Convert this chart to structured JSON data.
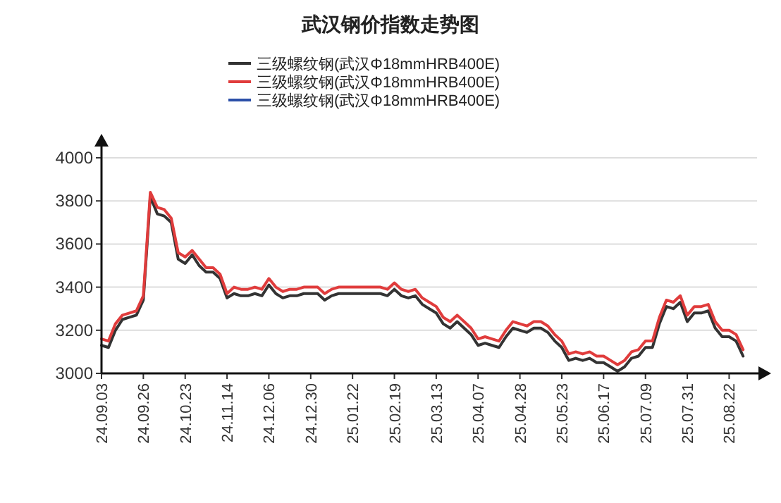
{
  "chart_data": {
    "type": "line",
    "title": "武汉钢价指数走势图",
    "categories": [
      "24.09.03",
      null,
      null,
      null,
      null,
      null,
      "24.09.26",
      null,
      null,
      null,
      null,
      null,
      "24.10.23",
      null,
      null,
      null,
      null,
      null,
      "24.11.14",
      null,
      null,
      null,
      null,
      null,
      "24.12.06",
      null,
      null,
      null,
      null,
      null,
      "24.12.30",
      null,
      null,
      null,
      null,
      null,
      "25.01.22",
      null,
      null,
      null,
      null,
      null,
      "25.02.19",
      null,
      null,
      null,
      null,
      null,
      "25.03.13",
      null,
      null,
      null,
      null,
      null,
      "25.04.07",
      null,
      null,
      null,
      null,
      null,
      "25.04.28",
      null,
      null,
      null,
      null,
      null,
      "25.05.23",
      null,
      null,
      null,
      null,
      null,
      "25.06.17",
      null,
      null,
      null,
      null,
      null,
      "25.07.09",
      null,
      null,
      null,
      null,
      null,
      "25.07.31",
      null,
      null,
      null,
      null,
      null,
      "25.08.22",
      null,
      null
    ],
    "series": [
      {
        "name": "三级螺纹钢(武汉Φ18mmHRB400E)",
        "color": "#333333",
        "values": [
          3130,
          3120,
          3200,
          3250,
          3260,
          3270,
          3340,
          3820,
          3740,
          3730,
          3700,
          3530,
          3510,
          3550,
          3500,
          3470,
          3470,
          3440,
          3350,
          3370,
          3360,
          3360,
          3370,
          3360,
          3410,
          3370,
          3350,
          3360,
          3360,
          3370,
          3370,
          3370,
          3340,
          3360,
          3370,
          3370,
          3370,
          3370,
          3370,
          3370,
          3370,
          3360,
          3390,
          3360,
          3350,
          3360,
          3320,
          3300,
          3280,
          3230,
          3210,
          3240,
          3210,
          3180,
          3130,
          3140,
          3130,
          3120,
          3170,
          3210,
          3200,
          3190,
          3210,
          3210,
          3190,
          3150,
          3120,
          3060,
          3070,
          3060,
          3070,
          3050,
          3050,
          3030,
          3010,
          3030,
          3070,
          3080,
          3120,
          3120,
          3230,
          3310,
          3300,
          3330,
          3240,
          3280,
          3280,
          3290,
          3210,
          3170,
          3170,
          3150,
          3080
        ]
      },
      {
        "name": "三级螺纹钢(武汉Φ18mmHRB400E)",
        "color": "#e03c3c",
        "values": [
          3160,
          3150,
          3230,
          3270,
          3280,
          3290,
          3360,
          3840,
          3770,
          3760,
          3720,
          3560,
          3540,
          3570,
          3530,
          3490,
          3490,
          3460,
          3370,
          3400,
          3390,
          3390,
          3400,
          3390,
          3440,
          3400,
          3380,
          3390,
          3390,
          3400,
          3400,
          3400,
          3370,
          3390,
          3400,
          3400,
          3400,
          3400,
          3400,
          3400,
          3400,
          3390,
          3420,
          3390,
          3380,
          3390,
          3350,
          3330,
          3310,
          3260,
          3240,
          3270,
          3240,
          3210,
          3160,
          3170,
          3160,
          3150,
          3200,
          3240,
          3230,
          3220,
          3240,
          3240,
          3220,
          3180,
          3150,
          3090,
          3100,
          3090,
          3100,
          3080,
          3080,
          3060,
          3040,
          3060,
          3100,
          3110,
          3150,
          3150,
          3260,
          3340,
          3330,
          3360,
          3270,
          3310,
          3310,
          3320,
          3240,
          3200,
          3200,
          3180,
          3110
        ]
      },
      {
        "name": "三级螺纹钢(武汉Φ18mmHRB400E)",
        "color": "#2b4fa8",
        "values": [
          null,
          null,
          null,
          null,
          null,
          null,
          null,
          null,
          null,
          null,
          null,
          null,
          null,
          null,
          null,
          null,
          null,
          null,
          null,
          null,
          null,
          null,
          null,
          null,
          null,
          null,
          null,
          null,
          null,
          null,
          null,
          null,
          null,
          null,
          null,
          null,
          null,
          null,
          null,
          null,
          null,
          null,
          null,
          null,
          null,
          null,
          null,
          null,
          null,
          null,
          null,
          null,
          null,
          null,
          null,
          null,
          null,
          null,
          null,
          null,
          null,
          null,
          null,
          null,
          null,
          null,
          null,
          null,
          null,
          null,
          null,
          null,
          null,
          null,
          null,
          null,
          null,
          null,
          null,
          null,
          null,
          null,
          null,
          null,
          null,
          null,
          null,
          null,
          null,
          null,
          null,
          null,
          null
        ]
      }
    ],
    "ylim": [
      3000,
      4000
    ],
    "yticks": [
      3000,
      3200,
      3400,
      3600,
      3800,
      4000
    ],
    "grid": "y",
    "legend": "top"
  }
}
